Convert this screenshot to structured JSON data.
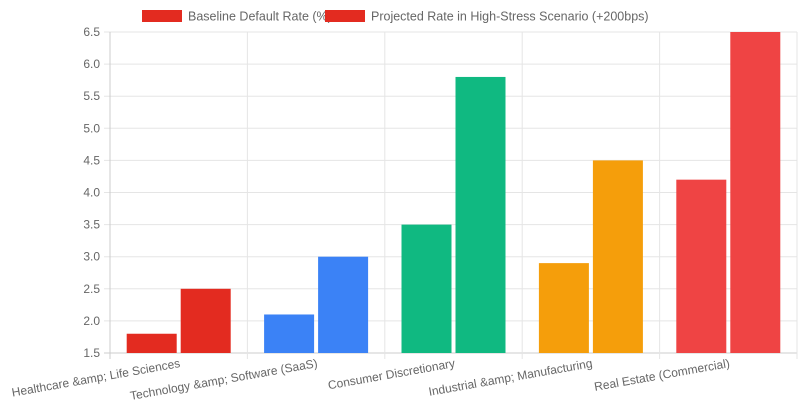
{
  "chart_data": {
    "type": "bar",
    "categories": [
      "Healthcare &amp; Life Sciences",
      "Technology &amp; Software (SaaS)",
      "Consumer Discretionary",
      "Industrial &amp; Manufacturing",
      "Real Estate (Commercial)"
    ],
    "series": [
      {
        "name": "Baseline Default Rate (%)",
        "values": [
          1.8,
          2.1,
          3.5,
          2.9,
          4.2
        ]
      },
      {
        "name": "Projected Rate in High-Stress Scenario (+200bps)",
        "values": [
          2.5,
          3.0,
          5.8,
          4.5,
          6.5
        ]
      }
    ],
    "category_colors": [
      "#e32b20",
      "#3b82f6",
      "#10b981",
      "#f59e0b",
      "#ef4444"
    ],
    "legend_color": "#e32b20",
    "ylim": [
      1.5,
      6.5
    ],
    "yticks": [
      "1.5",
      "2.0",
      "2.5",
      "3.0",
      "3.5",
      "4.0",
      "4.5",
      "5.0",
      "5.5",
      "6.0",
      "6.5"
    ],
    "grid": true,
    "legend_position": "top"
  }
}
